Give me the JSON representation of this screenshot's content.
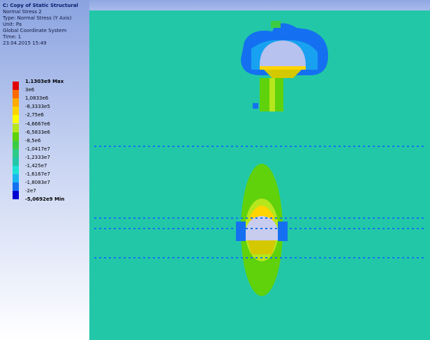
{
  "header": {
    "title": "C: Copy of Static Structural",
    "lines": [
      "Normal Stress 2",
      "Type: Normal Stress (Y Axis)",
      "Unit: Pa",
      "Global Coordinate System",
      "Time: 1",
      "23.04.2015 15:49"
    ]
  },
  "legend": {
    "labels": [
      "1.1303e9 Max",
      "3e6",
      "1,0833e6",
      "-8,3333e5",
      "-2,75e6",
      "-4,6667e6",
      "-6,5833e6",
      "-8,5e6",
      "-1,0417e7",
      "-1,2333e7",
      "-1,425e7",
      "-1,6167e7",
      "-1,8083e7",
      "-2e7",
      "-5,0692e9 Min"
    ],
    "colors": [
      "#e00000",
      "#ff6a00",
      "#ffaa00",
      "#ffd400",
      "#ffff00",
      "#b6e61c",
      "#5fd20c",
      "#3ccc44",
      "#2ecb88",
      "#22c7a8",
      "#1ee2d6",
      "#1ab6f0",
      "#1470f0",
      "#0000d0"
    ]
  }
}
